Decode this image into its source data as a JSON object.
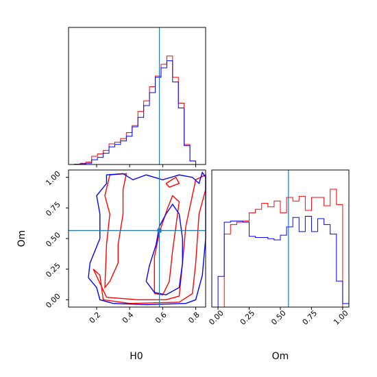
{
  "chart_data": {
    "type": "corner",
    "parameters": [
      "H0",
      "Om"
    ],
    "truth": {
      "H0": 0.58,
      "Om": 0.565
    },
    "series": [
      {
        "name": "",
        "color": "#ff0000"
      },
      {
        "name": "",
        "color": "#0000ff"
      }
    ],
    "truth_color": "#1f77b4",
    "panels": [
      {
        "id": "hist-h0",
        "type": "histogram",
        "param": "H0",
        "xlim": [
          0.03,
          0.86
        ],
        "show_x_ticklabels": false,
        "show_y_ticklabels": false,
        "edges": [
          0.03,
          0.065,
          0.1,
          0.135,
          0.17,
          0.205,
          0.24,
          0.275,
          0.31,
          0.345,
          0.38,
          0.415,
          0.45,
          0.485,
          0.52,
          0.555,
          0.59,
          0.625,
          0.66,
          0.695,
          0.73,
          0.765,
          0.8,
          0.835,
          0.86
        ],
        "series_values": [
          [
            0.0,
            0.003,
            0.01,
            0.02,
            0.07,
            0.09,
            0.12,
            0.175,
            0.19,
            0.22,
            0.27,
            0.33,
            0.45,
            0.54,
            0.66,
            0.75,
            0.85,
            0.92,
            0.74,
            0.52,
            0.17,
            0.03,
            0.0,
            0.0
          ],
          [
            0.0,
            0.002,
            0.006,
            0.01,
            0.04,
            0.06,
            0.095,
            0.15,
            0.17,
            0.2,
            0.24,
            0.32,
            0.4,
            0.5,
            0.61,
            0.74,
            0.82,
            0.88,
            0.7,
            0.48,
            0.16,
            0.03,
            0.0,
            0.0
          ]
        ]
      },
      {
        "id": "contour-h0-om",
        "type": "contour",
        "xparam": "H0",
        "yparam": "Om",
        "xlim": [
          0.03,
          0.86
        ],
        "ylim": [
          -0.06,
          1.06
        ],
        "xticks": [
          "0.2",
          "0.4",
          "0.6",
          "0.8"
        ],
        "xtick_values": [
          0.2,
          0.4,
          0.6,
          0.8
        ],
        "yticks": [
          "0.00",
          "0.25",
          "0.50",
          "0.75",
          "1.00"
        ],
        "ytick_values": [
          0.0,
          0.25,
          0.5,
          0.75,
          1.0
        ],
        "xlabel": "H0",
        "ylabel": "Om",
        "series_contours": [
          [
            [
              [
                0.26,
                0.02
              ],
              [
                0.45,
                0.0
              ],
              [
                0.62,
                0.0
              ],
              [
                0.7,
                0.03
              ],
              [
                0.72,
                0.3
              ],
              [
                0.74,
                0.6
              ],
              [
                0.8,
                0.98
              ],
              [
                0.86,
                1.02
              ],
              [
                0.86,
                0.9
              ],
              [
                0.82,
                0.7
              ],
              [
                0.8,
                0.3
              ],
              [
                0.78,
                0.05
              ],
              [
                0.7,
                -0.02
              ],
              [
                0.4,
                -0.03
              ],
              [
                0.24,
                0.0
              ],
              [
                0.22,
                0.2
              ],
              [
                0.18,
                0.25
              ],
              [
                0.26,
                0.02
              ]
            ],
            [
              [
                0.28,
                1.02
              ],
              [
                0.38,
                1.03
              ],
              [
                0.36,
                0.9
              ],
              [
                0.36,
                0.7
              ],
              [
                0.33,
                0.45
              ],
              [
                0.33,
                0.3
              ],
              [
                0.28,
                0.15
              ],
              [
                0.25,
                0.1
              ],
              [
                0.26,
                0.45
              ],
              [
                0.28,
                0.7
              ],
              [
                0.25,
                0.85
              ],
              [
                0.28,
                1.02
              ]
            ],
            [
              [
                0.55,
                0.05
              ],
              [
                0.55,
                0.35
              ],
              [
                0.58,
                0.55
              ],
              [
                0.63,
                0.75
              ],
              [
                0.66,
                0.85
              ],
              [
                0.7,
                0.8
              ],
              [
                0.68,
                0.6
              ],
              [
                0.66,
                0.4
              ],
              [
                0.64,
                0.15
              ],
              [
                0.6,
                0.04
              ],
              [
                0.55,
                0.05
              ]
            ],
            [
              [
                0.62,
                0.95
              ],
              [
                0.68,
                1.0
              ],
              [
                0.7,
                0.95
              ],
              [
                0.64,
                0.92
              ],
              [
                0.62,
                0.95
              ]
            ]
          ],
          [
            [
              [
                0.15,
                0.18
              ],
              [
                0.16,
                0.3
              ],
              [
                0.22,
                0.5
              ],
              [
                0.22,
                0.7
              ],
              [
                0.2,
                0.85
              ],
              [
                0.26,
                0.95
              ],
              [
                0.26,
                1.02
              ],
              [
                0.36,
                1.03
              ],
              [
                0.42,
                0.98
              ],
              [
                0.5,
                1.02
              ],
              [
                0.6,
                0.98
              ],
              [
                0.7,
                1.02
              ],
              [
                0.78,
                1.0
              ],
              [
                0.82,
                0.95
              ],
              [
                0.84,
                1.04
              ],
              [
                0.86,
                1.0
              ],
              [
                0.86,
                0.5
              ],
              [
                0.84,
                0.2
              ],
              [
                0.8,
                0.0
              ],
              [
                0.74,
                -0.03
              ],
              [
                0.5,
                -0.04
              ],
              [
                0.3,
                -0.03
              ],
              [
                0.22,
                0.0
              ],
              [
                0.2,
                0.1
              ],
              [
                0.15,
                0.18
              ]
            ],
            [
              [
                0.5,
                0.15
              ],
              [
                0.52,
                0.28
              ],
              [
                0.56,
                0.45
              ],
              [
                0.58,
                0.6
              ],
              [
                0.62,
                0.7
              ],
              [
                0.66,
                0.78
              ],
              [
                0.7,
                0.7
              ],
              [
                0.72,
                0.5
              ],
              [
                0.72,
                0.3
              ],
              [
                0.7,
                0.1
              ],
              [
                0.62,
                0.04
              ],
              [
                0.55,
                0.06
              ],
              [
                0.5,
                0.15
              ]
            ]
          ]
        ]
      },
      {
        "id": "hist-om",
        "type": "histogram",
        "param": "Om",
        "xlim": [
          -0.05,
          1.05
        ],
        "xticks": [
          "0.00",
          "0.25",
          "0.50",
          "0.75",
          "1.00"
        ],
        "xtick_values": [
          0.0,
          0.25,
          0.5,
          0.75,
          1.0
        ],
        "xlabel": "Om",
        "show_y_ticklabels": false,
        "edges": [
          -0.05,
          0.0,
          0.05,
          0.1,
          0.15,
          0.2,
          0.25,
          0.3,
          0.35,
          0.4,
          0.45,
          0.5,
          0.55,
          0.6,
          0.65,
          0.7,
          0.75,
          0.8,
          0.85,
          0.9,
          0.95,
          1.0,
          1.05
        ],
        "series_values": [
          [
            0.0,
            0.0,
            0.62,
            0.7,
            0.72,
            0.73,
            0.8,
            0.83,
            0.88,
            0.85,
            0.9,
            0.8,
            0.93,
            0.9,
            0.94,
            0.82,
            0.93,
            0.93,
            0.86,
            1.0,
            0.87,
            0.0
          ],
          [
            0.0,
            0.26,
            0.72,
            0.73,
            0.73,
            0.72,
            0.6,
            0.59,
            0.59,
            0.58,
            0.57,
            0.61,
            0.68,
            0.76,
            0.64,
            0.77,
            0.64,
            0.75,
            0.7,
            0.62,
            0.22,
            0.03
          ]
        ]
      }
    ]
  }
}
